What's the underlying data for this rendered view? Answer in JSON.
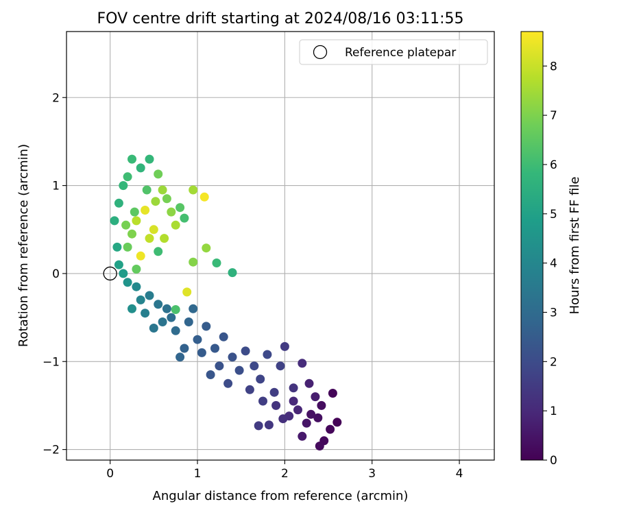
{
  "chart_data": {
    "type": "scatter",
    "title": "FOV centre drift starting at 2024/08/16 03:11:55",
    "xlabel": "Angular distance from reference (arcmin)",
    "ylabel": "Rotation from reference (arcmin)",
    "xlim": [
      -0.5,
      4.4
    ],
    "ylim": [
      -2.12,
      2.75
    ],
    "x_ticks": [
      0,
      1,
      2,
      3,
      4
    ],
    "x_tick_labels": [
      "0",
      "1",
      "2",
      "3",
      "4"
    ],
    "y_ticks": [
      -2,
      -1,
      0,
      1,
      2
    ],
    "y_tick_labels": [
      "−2",
      "−1",
      "0",
      "1",
      "2"
    ],
    "grid": true,
    "legend": {
      "placement": "top-right",
      "entries": [
        {
          "label": "Reference platepar",
          "marker": "open-circle",
          "x": 0,
          "y": 0
        }
      ]
    },
    "colorbar": {
      "label": "Hours from first FF file",
      "colormap": "viridis",
      "range": [
        0,
        8.7
      ],
      "ticks": [
        0,
        1,
        2,
        3,
        4,
        5,
        6,
        7,
        8
      ],
      "tick_labels": [
        "0",
        "1",
        "2",
        "3",
        "4",
        "5",
        "6",
        "7",
        "8"
      ]
    },
    "series": [
      {
        "points": [
          [
            2.6,
            -1.69,
            0.05
          ],
          [
            2.55,
            -1.36,
            0.1
          ],
          [
            2.52,
            -1.77,
            0.15
          ],
          [
            2.45,
            -1.9,
            0.2
          ],
          [
            2.4,
            -1.96,
            0.25
          ],
          [
            2.42,
            -1.5,
            0.3
          ],
          [
            2.38,
            -1.64,
            0.35
          ],
          [
            2.3,
            -1.6,
            0.4
          ],
          [
            2.25,
            -1.7,
            0.5
          ],
          [
            2.2,
            -1.85,
            0.6
          ],
          [
            2.35,
            -1.4,
            0.7
          ],
          [
            2.28,
            -1.25,
            0.8
          ],
          [
            2.15,
            -1.55,
            0.9
          ],
          [
            2.1,
            -1.45,
            1.0
          ],
          [
            2.05,
            -1.62,
            1.1
          ],
          [
            1.98,
            -1.65,
            1.2
          ],
          [
            1.9,
            -1.5,
            1.3
          ],
          [
            1.82,
            -1.72,
            1.4
          ],
          [
            1.7,
            -1.73,
            1.5
          ],
          [
            1.75,
            -1.45,
            1.6
          ],
          [
            2.2,
            -1.02,
            1.1
          ],
          [
            2.0,
            -0.83,
            1.5
          ],
          [
            2.1,
            -1.3,
            1.3
          ],
          [
            1.95,
            -1.05,
            1.7
          ],
          [
            1.88,
            -1.35,
            1.6
          ],
          [
            1.8,
            -0.92,
            1.9
          ],
          [
            1.72,
            -1.2,
            1.8
          ],
          [
            1.65,
            -1.05,
            1.9
          ],
          [
            1.6,
            -1.32,
            1.7
          ],
          [
            1.55,
            -0.88,
            2.0
          ],
          [
            1.48,
            -1.1,
            2.1
          ],
          [
            1.4,
            -0.95,
            2.2
          ],
          [
            1.35,
            -1.25,
            2.0
          ],
          [
            1.3,
            -0.72,
            2.3
          ],
          [
            1.25,
            -1.05,
            2.2
          ],
          [
            1.2,
            -0.85,
            2.4
          ],
          [
            1.15,
            -1.15,
            2.3
          ],
          [
            1.1,
            -0.6,
            2.5
          ],
          [
            1.05,
            -0.9,
            2.5
          ],
          [
            1.0,
            -0.75,
            2.6
          ],
          [
            0.95,
            -0.4,
            2.9
          ],
          [
            0.9,
            -0.55,
            2.8
          ],
          [
            0.85,
            -0.85,
            2.7
          ],
          [
            0.8,
            -0.95,
            2.8
          ],
          [
            0.75,
            -0.65,
            3.0
          ],
          [
            0.7,
            -0.5,
            3.1
          ],
          [
            0.65,
            -0.4,
            3.2
          ],
          [
            0.6,
            -0.55,
            3.3
          ],
          [
            0.55,
            -0.35,
            3.4
          ],
          [
            0.5,
            -0.62,
            3.4
          ],
          [
            0.45,
            -0.25,
            3.6
          ],
          [
            0.4,
            -0.45,
            3.7
          ],
          [
            0.35,
            -0.3,
            3.9
          ],
          [
            0.3,
            -0.15,
            4.1
          ],
          [
            0.25,
            -0.4,
            4.3
          ],
          [
            0.2,
            -0.1,
            4.5
          ],
          [
            0.15,
            0.0,
            4.8
          ],
          [
            0.1,
            0.1,
            5.0
          ],
          [
            0.08,
            0.3,
            5.2
          ],
          [
            0.05,
            0.6,
            5.5
          ],
          [
            0.1,
            0.8,
            5.6
          ],
          [
            0.15,
            1.0,
            5.8
          ],
          [
            0.2,
            1.1,
            6.0
          ],
          [
            0.25,
            1.3,
            5.9
          ],
          [
            0.35,
            1.2,
            5.7
          ],
          [
            0.45,
            1.3,
            5.8
          ],
          [
            0.55,
            1.13,
            6.8
          ],
          [
            0.6,
            0.95,
            7.4
          ],
          [
            0.65,
            0.85,
            6.9
          ],
          [
            0.7,
            0.7,
            7.2
          ],
          [
            0.75,
            0.55,
            7.6
          ],
          [
            0.8,
            0.75,
            6.4
          ],
          [
            0.85,
            0.63,
            6.1
          ],
          [
            0.3,
            0.6,
            7.8
          ],
          [
            0.4,
            0.72,
            8.4
          ],
          [
            0.5,
            0.5,
            8.2
          ],
          [
            0.45,
            0.4,
            7.9
          ],
          [
            0.35,
            0.2,
            8.5
          ],
          [
            0.25,
            0.45,
            7.0
          ],
          [
            0.2,
            0.3,
            6.7
          ],
          [
            0.95,
            0.95,
            7.5
          ],
          [
            1.08,
            0.87,
            8.6
          ],
          [
            1.1,
            0.29,
            7.3
          ],
          [
            0.95,
            0.13,
            7.1
          ],
          [
            0.88,
            -0.21,
            8.3
          ],
          [
            1.22,
            0.12,
            5.9
          ],
          [
            1.4,
            0.01,
            5.6
          ],
          [
            0.75,
            -0.41,
            6.2
          ],
          [
            0.3,
            0.05,
            6.6
          ],
          [
            0.55,
            0.25,
            6.0
          ],
          [
            0.28,
            0.7,
            6.5
          ],
          [
            0.62,
            0.4,
            7.7
          ],
          [
            0.42,
            0.95,
            6.3
          ],
          [
            0.18,
            0.55,
            6.9
          ],
          [
            0.52,
            0.82,
            7.4
          ]
        ]
      }
    ]
  }
}
